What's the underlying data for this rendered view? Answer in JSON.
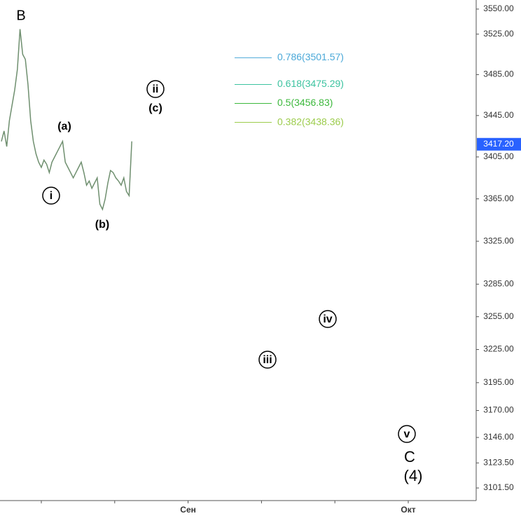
{
  "chart_data": {
    "type": "line",
    "log_scale": true,
    "ylim": [
      3090.5,
      3559.1
    ],
    "yticks": [
      {
        "value": 3550,
        "label": "3550.00"
      },
      {
        "value": 3525,
        "label": "3525.00"
      },
      {
        "value": 3485,
        "label": "3485.00"
      },
      {
        "value": 3445,
        "label": "3445.00"
      },
      {
        "value": 3405,
        "label": "3405.00"
      },
      {
        "value": 3365,
        "label": "3365.00"
      },
      {
        "value": 3325,
        "label": "3325.00"
      },
      {
        "value": 3285,
        "label": "3285.00"
      },
      {
        "value": 3255,
        "label": "3255.00"
      },
      {
        "value": 3225,
        "label": "3225.00"
      },
      {
        "value": 3195,
        "label": "3195.00"
      },
      {
        "value": 3170,
        "label": "3170.00"
      },
      {
        "value": 3146,
        "label": "3146.00"
      },
      {
        "value": 3123.5,
        "label": "3123.50"
      },
      {
        "value": 3101.5,
        "label": "3101.50"
      }
    ],
    "xtick_labels": [
      null,
      null,
      "Сен",
      null,
      null,
      "Окт"
    ],
    "series": [
      {
        "color": "#6f8f6f",
        "values": [
          3420,
          3430,
          3415,
          3440,
          3455,
          3470,
          3490,
          3530,
          3505,
          3500,
          3475,
          3440,
          3420,
          3408,
          3400,
          3395,
          3402,
          3398,
          3390,
          3400,
          3405,
          3410,
          3415,
          3420,
          3400,
          3395,
          3390,
          3385,
          3390,
          3395,
          3400,
          3390,
          3378,
          3382,
          3375,
          3380,
          3385,
          3360,
          3355,
          3365,
          3380,
          3392,
          3390,
          3385,
          3382,
          3378,
          3385,
          3372,
          3368,
          3420
        ]
      }
    ],
    "last_price": {
      "value": 3417.2,
      "label": "3417.20"
    },
    "last_price_color": "#2962ff",
    "fib_levels": [
      {
        "value": 3501.57,
        "label": "0.786(3501.57)",
        "color": "#4aa8d8"
      },
      {
        "value": 3475.29,
        "label": "0.618(3475.29)",
        "color": "#3cc3a0"
      },
      {
        "value": 3456.83,
        "label": "0.5(3456.83)",
        "color": "#3cb83c"
      },
      {
        "value": 3438.36,
        "label": "0.382(3438.36)",
        "color": "#9ccc4c"
      }
    ],
    "wave_labels": [
      "B",
      "(a)",
      "i",
      "(b)",
      "ii",
      "(c)",
      "iii",
      "iv",
      "v",
      "C",
      "(4)"
    ]
  }
}
